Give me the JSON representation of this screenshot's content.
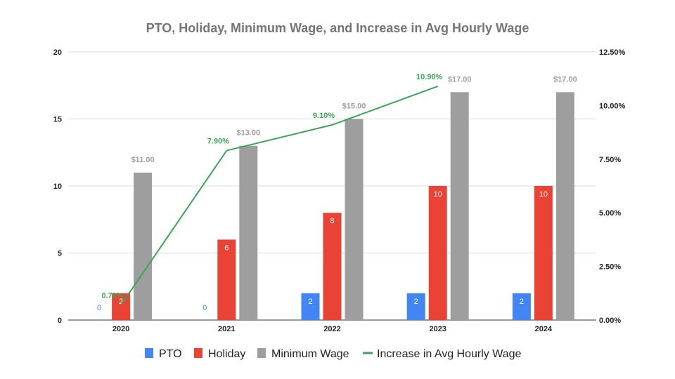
{
  "chart_data": {
    "type": "bar",
    "title": "PTO, Holiday, Minimum Wage, and Increase in Avg Hourly Wage",
    "categories": [
      "2020",
      "2021",
      "2022",
      "2023",
      "2024"
    ],
    "ylim": [
      0,
      20
    ],
    "y_ticks": [
      "0",
      "5",
      "10",
      "15",
      "20"
    ],
    "y2lim": [
      0,
      12.5
    ],
    "y2_ticks": [
      "0.00%",
      "2.50%",
      "5.00%",
      "7.50%",
      "10.00%",
      "12.50%"
    ],
    "grid": true,
    "legend_position": "bottom",
    "series": [
      {
        "name": "PTO",
        "type": "bar",
        "axis": "left",
        "color": "#4285f4",
        "values": [
          0,
          0,
          2,
          2,
          2
        ],
        "labels": [
          "0",
          "0",
          "2",
          "2",
          "2"
        ]
      },
      {
        "name": "Holiday",
        "type": "bar",
        "axis": "left",
        "color": "#ea4335",
        "values": [
          2,
          6,
          8,
          10,
          10
        ],
        "labels": [
          "2",
          "6",
          "8",
          "10",
          "10"
        ]
      },
      {
        "name": "Minimum Wage",
        "type": "bar",
        "axis": "left",
        "color": "#9e9e9e",
        "values": [
          11,
          13,
          15,
          17,
          17
        ],
        "labels": [
          "$11.00",
          "$13.00",
          "$15.00",
          "$17.00",
          "$17.00"
        ]
      },
      {
        "name": "Increase in Avg Hourly Wage",
        "type": "line",
        "axis": "right",
        "color": "#3aa655",
        "values": [
          0.7,
          7.9,
          9.1,
          10.9,
          null
        ],
        "labels": [
          "0.70%",
          "7.90%",
          "9.10%",
          "10.90%",
          null
        ]
      }
    ]
  }
}
